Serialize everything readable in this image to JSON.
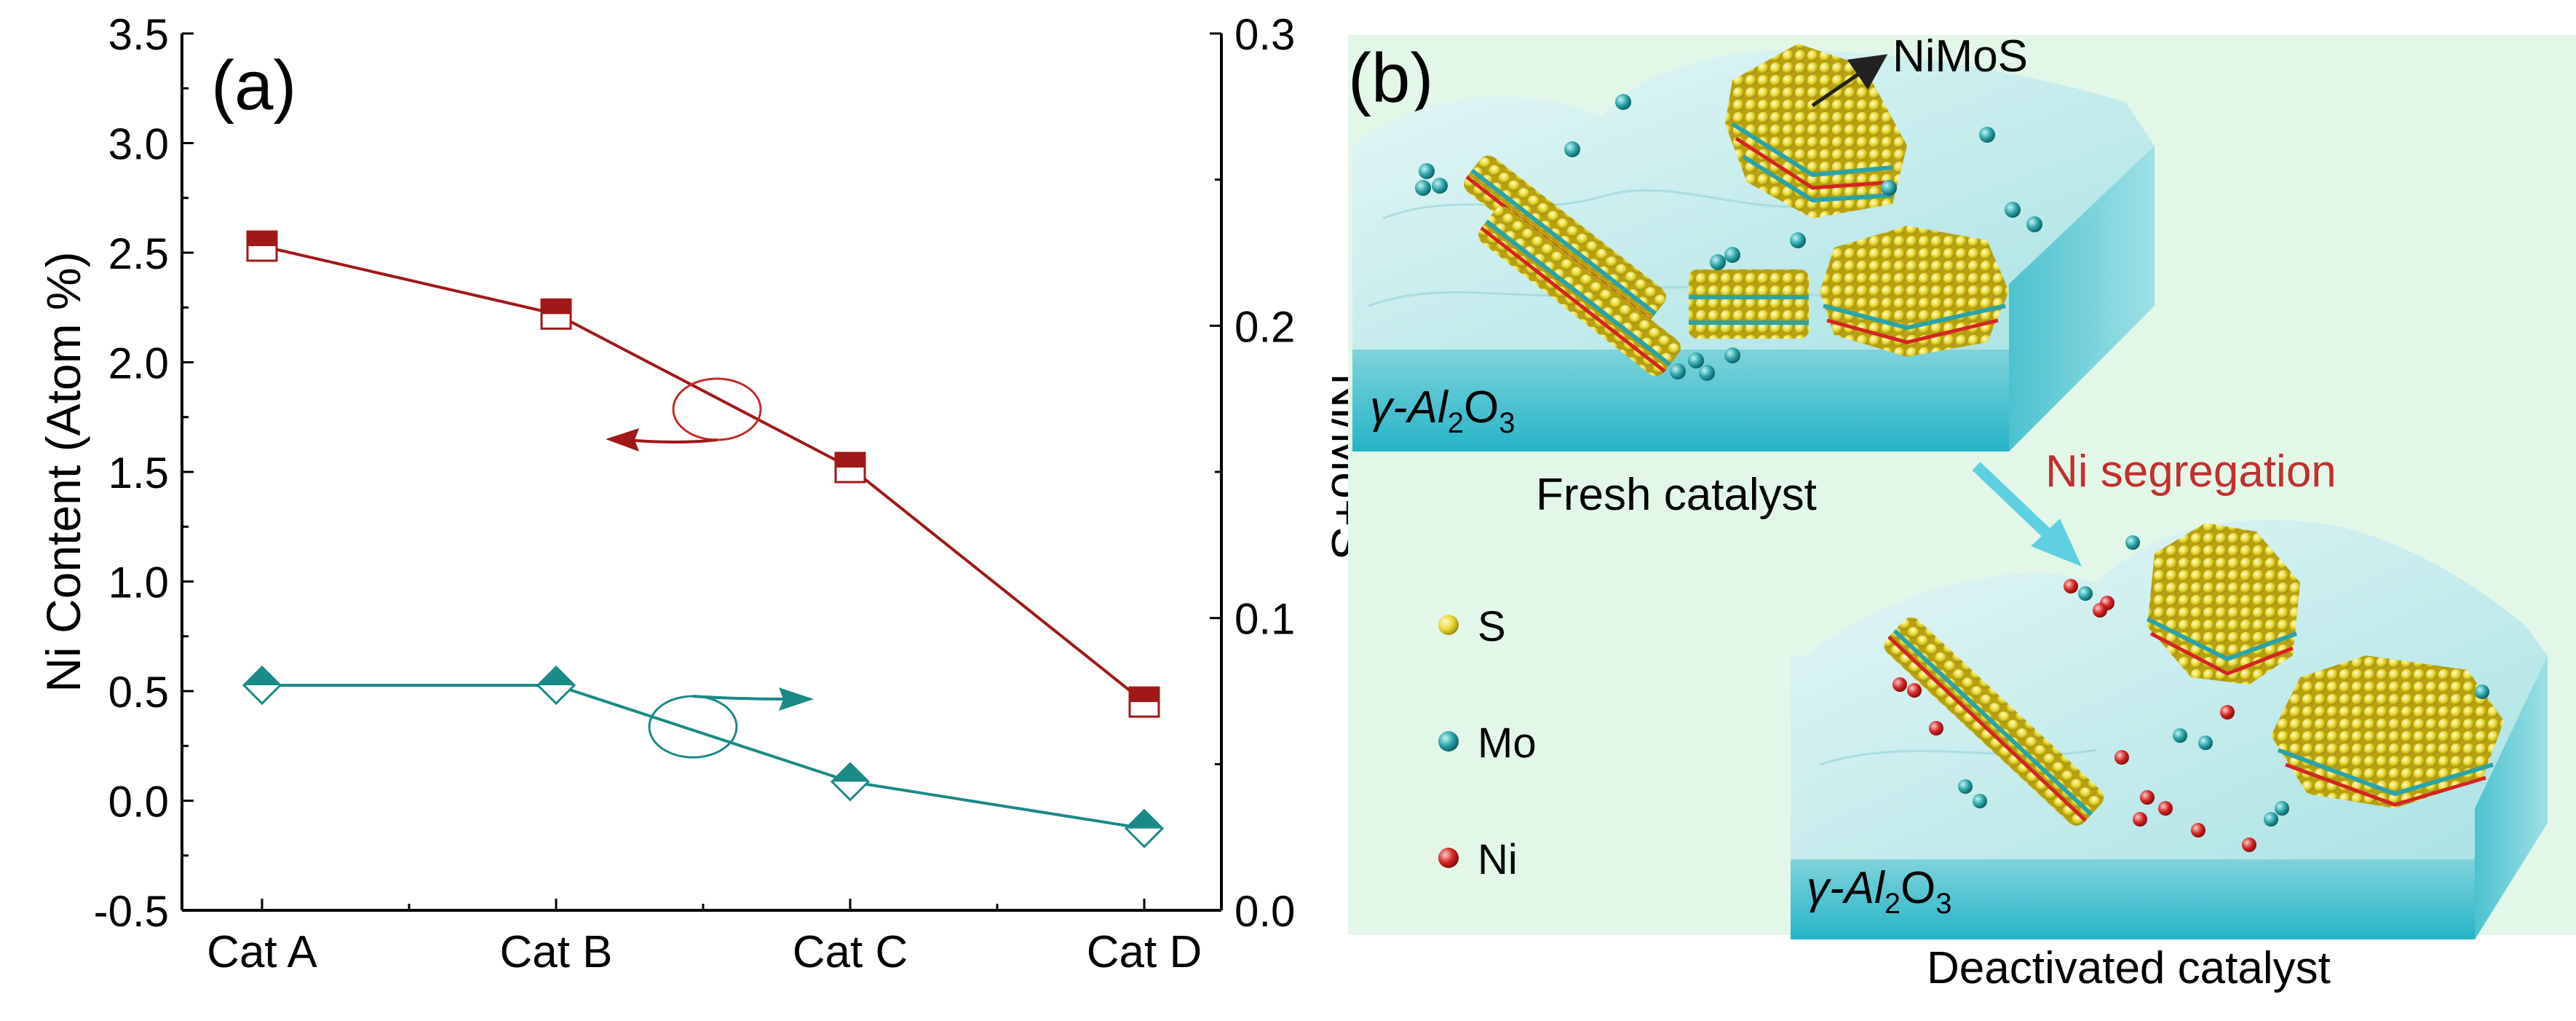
{
  "panel_a": {
    "label": "(a)"
  },
  "panel_b": {
    "label": "(b)",
    "nimos_label": "NiMoS",
    "gamma_label_1": {
      "pre": "γ-Al",
      "sub1": "2",
      "mid": "O",
      "sub2": "3"
    },
    "gamma_label_2": {
      "pre": "γ-Al",
      "sub1": "2",
      "mid": "O",
      "sub2": "3"
    },
    "fresh_label": "Fresh catalyst",
    "deactivated_label": "Deactivated catalyst",
    "segregation_label": "Ni segregation",
    "legend": [
      {
        "label": "S",
        "color": "#e8d82a"
      },
      {
        "label": "Mo",
        "color": "#2aa3a8"
      },
      {
        "label": "Ni",
        "color": "#d42424"
      }
    ]
  },
  "chart_data": {
    "type": "line",
    "categories": [
      "Cat A",
      "Cat B",
      "Cat C",
      "Cat D"
    ],
    "ylabel": "Ni Content (Atom %)",
    "y2label": "Ni/Mo+S",
    "ylim": [
      -0.5,
      3.5
    ],
    "y2lim": [
      0.0,
      0.3
    ],
    "yticks": [
      "-0.5",
      "0.0",
      "0.5",
      "1.0",
      "1.5",
      "2.0",
      "2.5",
      "3.0",
      "3.5"
    ],
    "y2ticks": [
      "0.0",
      "0.1",
      "0.2",
      "0.3"
    ],
    "series": [
      {
        "name": "Ni Content",
        "axis": "left",
        "marker": "half-filled-square",
        "color": "#a01818",
        "values": [
          2.53,
          2.22,
          1.52,
          0.45
        ]
      },
      {
        "name": "Ni/Mo+S",
        "axis": "right",
        "marker": "half-filled-diamond",
        "color": "#1a8a86",
        "values": [
          0.077,
          0.077,
          0.044,
          0.028
        ]
      }
    ]
  }
}
